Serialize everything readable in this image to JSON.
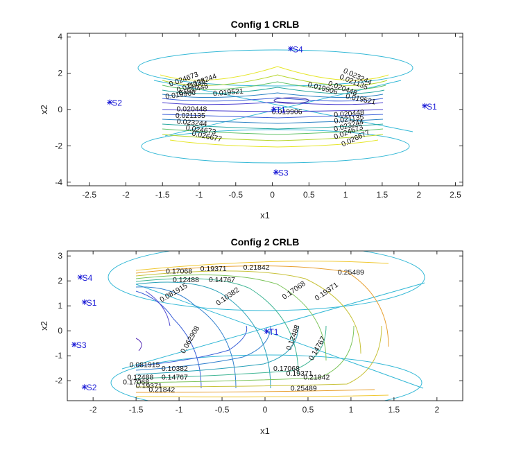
{
  "chart_data": [
    {
      "type": "contour",
      "title": "Config 1 CRLB",
      "xlabel": "x1",
      "ylabel": "x2",
      "xlim": [
        -2.8,
        2.6
      ],
      "ylim": [
        -4.2,
        4.2
      ],
      "xticks": [
        "-2.5",
        "-2",
        "-1.5",
        "-1",
        "-0.5",
        "0",
        "0.5",
        "1",
        "1.5",
        "2",
        "2.5"
      ],
      "yticks": [
        "-4",
        "-2",
        "0",
        "2",
        "4"
      ],
      "points": [
        {
          "label": "S1",
          "x": 2.08,
          "y": 0.2
        },
        {
          "label": "S2",
          "x": -2.22,
          "y": 0.4
        },
        {
          "label": "S3",
          "x": 0.05,
          "y": -3.45
        },
        {
          "label": "S4",
          "x": 0.25,
          "y": 3.35
        },
        {
          "label": "T1",
          "x": 0.02,
          "y": 0.02
        }
      ],
      "contour_labels": [
        {
          "text": "0.024673",
          "x": -1.2,
          "y": 1.55,
          "rot": -20
        },
        {
          "text": "0.023244",
          "x": -0.95,
          "y": 1.45,
          "rot": -20
        },
        {
          "text": "0.021135",
          "x": -1.1,
          "y": 1.2,
          "rot": -18
        },
        {
          "text": "0.020448",
          "x": -1.07,
          "y": 0.98,
          "rot": -15
        },
        {
          "text": "0.019906",
          "x": -1.25,
          "y": 0.7,
          "rot": -8
        },
        {
          "text": "0.019521",
          "x": -0.6,
          "y": 0.82,
          "rot": -5
        },
        {
          "text": "0.023244",
          "x": 1.15,
          "y": 1.7,
          "rot": 25
        },
        {
          "text": "0.021135",
          "x": 1.1,
          "y": 1.4,
          "rot": 22
        },
        {
          "text": "0.020448",
          "x": 0.95,
          "y": 1.05,
          "rot": 20
        },
        {
          "text": "0.019906",
          "x": 0.68,
          "y": 1.05,
          "rot": 15
        },
        {
          "text": "0.019521",
          "x": 1.2,
          "y": 0.45,
          "rot": 12
        },
        {
          "text": "0.020448",
          "x": -1.1,
          "y": -0.1,
          "rot": 0
        },
        {
          "text": "0.021135",
          "x": -1.12,
          "y": -0.45,
          "rot": 0
        },
        {
          "text": "0.023244",
          "x": -1.1,
          "y": -0.85,
          "rot": 5
        },
        {
          "text": "0.024673",
          "x": -0.98,
          "y": -1.25,
          "rot": 8
        },
        {
          "text": "0.026677",
          "x": -0.9,
          "y": -1.6,
          "rot": 12
        },
        {
          "text": "0.019906",
          "x": 0.2,
          "y": -0.25,
          "rot": 0
        },
        {
          "text": "0.020448",
          "x": 1.05,
          "y": -0.35,
          "rot": -5
        },
        {
          "text": "0.021135",
          "x": 1.05,
          "y": -0.65,
          "rot": -8
        },
        {
          "text": "0.023244",
          "x": 1.05,
          "y": -1.0,
          "rot": -15
        },
        {
          "text": "0.024673",
          "x": 1.05,
          "y": -1.35,
          "rot": -20
        },
        {
          "text": "0.026677",
          "x": 1.15,
          "y": -1.7,
          "rot": -25
        }
      ]
    },
    {
      "type": "contour",
      "title": "Config 2 CRLB",
      "xlabel": "x1",
      "ylabel": "x2",
      "xlim": [
        -2.3,
        2.3
      ],
      "ylim": [
        -2.8,
        3.2
      ],
      "xticks": [
        "-2",
        "-1.5",
        "-1",
        "-0.5",
        "0",
        "0.5",
        "1",
        "1.5",
        "2"
      ],
      "yticks": [
        "-2",
        "-1",
        "0",
        "1",
        "2",
        "3"
      ],
      "points": [
        {
          "label": "S1",
          "x": -2.1,
          "y": 1.15
        },
        {
          "label": "S2",
          "x": -2.1,
          "y": -2.25
        },
        {
          "label": "S3",
          "x": -2.22,
          "y": -0.55
        },
        {
          "label": "S4",
          "x": -2.15,
          "y": 2.15
        },
        {
          "label": "T1",
          "x": 0.02,
          "y": -0.02
        }
      ],
      "contour_labels": [
        {
          "text": "0.17068",
          "x": -1.0,
          "y": 2.3,
          "rot": 0
        },
        {
          "text": "0.19371",
          "x": -0.6,
          "y": 2.4,
          "rot": 0
        },
        {
          "text": "0.21842",
          "x": -0.1,
          "y": 2.45,
          "rot": 0
        },
        {
          "text": "0.25489",
          "x": 1.0,
          "y": 2.25,
          "rot": 0
        },
        {
          "text": "0.12488",
          "x": -0.92,
          "y": 1.95,
          "rot": 0
        },
        {
          "text": "0.14767",
          "x": -0.5,
          "y": 1.95,
          "rot": 0
        },
        {
          "text": "0.081915",
          "x": -1.05,
          "y": 1.45,
          "rot": -30
        },
        {
          "text": "0.10382",
          "x": -0.42,
          "y": 1.3,
          "rot": -35
        },
        {
          "text": "0.17068",
          "x": 0.35,
          "y": 1.55,
          "rot": -35
        },
        {
          "text": "0.19371",
          "x": 0.73,
          "y": 1.5,
          "rot": -35
        },
        {
          "text": "0.062908",
          "x": -0.85,
          "y": -0.4,
          "rot": -60
        },
        {
          "text": "0.12488",
          "x": 0.35,
          "y": -0.3,
          "rot": -70
        },
        {
          "text": "0.14767",
          "x": 0.63,
          "y": -0.75,
          "rot": -60
        },
        {
          "text": "0.081915",
          "x": -1.4,
          "y": -1.45,
          "rot": 0
        },
        {
          "text": "0.10382",
          "x": -1.05,
          "y": -1.6,
          "rot": 0
        },
        {
          "text": "0.12488",
          "x": -1.45,
          "y": -1.95,
          "rot": 0
        },
        {
          "text": "0.14767",
          "x": -1.05,
          "y": -1.95,
          "rot": 0
        },
        {
          "text": "0.17068",
          "x": 0.25,
          "y": -1.6,
          "rot": 0
        },
        {
          "text": "0.19371",
          "x": 0.4,
          "y": -1.8,
          "rot": 0
        },
        {
          "text": "0.21842",
          "x": 0.6,
          "y": -1.95,
          "rot": 0
        },
        {
          "text": "0.25489",
          "x": 0.45,
          "y": -2.4,
          "rot": 0
        },
        {
          "text": "0.17068",
          "x": -1.5,
          "y": -2.15,
          "rot": 0
        },
        {
          "text": "0.19371",
          "x": -1.35,
          "y": -2.3,
          "rot": 0
        },
        {
          "text": "0.21842",
          "x": -1.2,
          "y": -2.45,
          "rot": 0
        }
      ]
    }
  ]
}
